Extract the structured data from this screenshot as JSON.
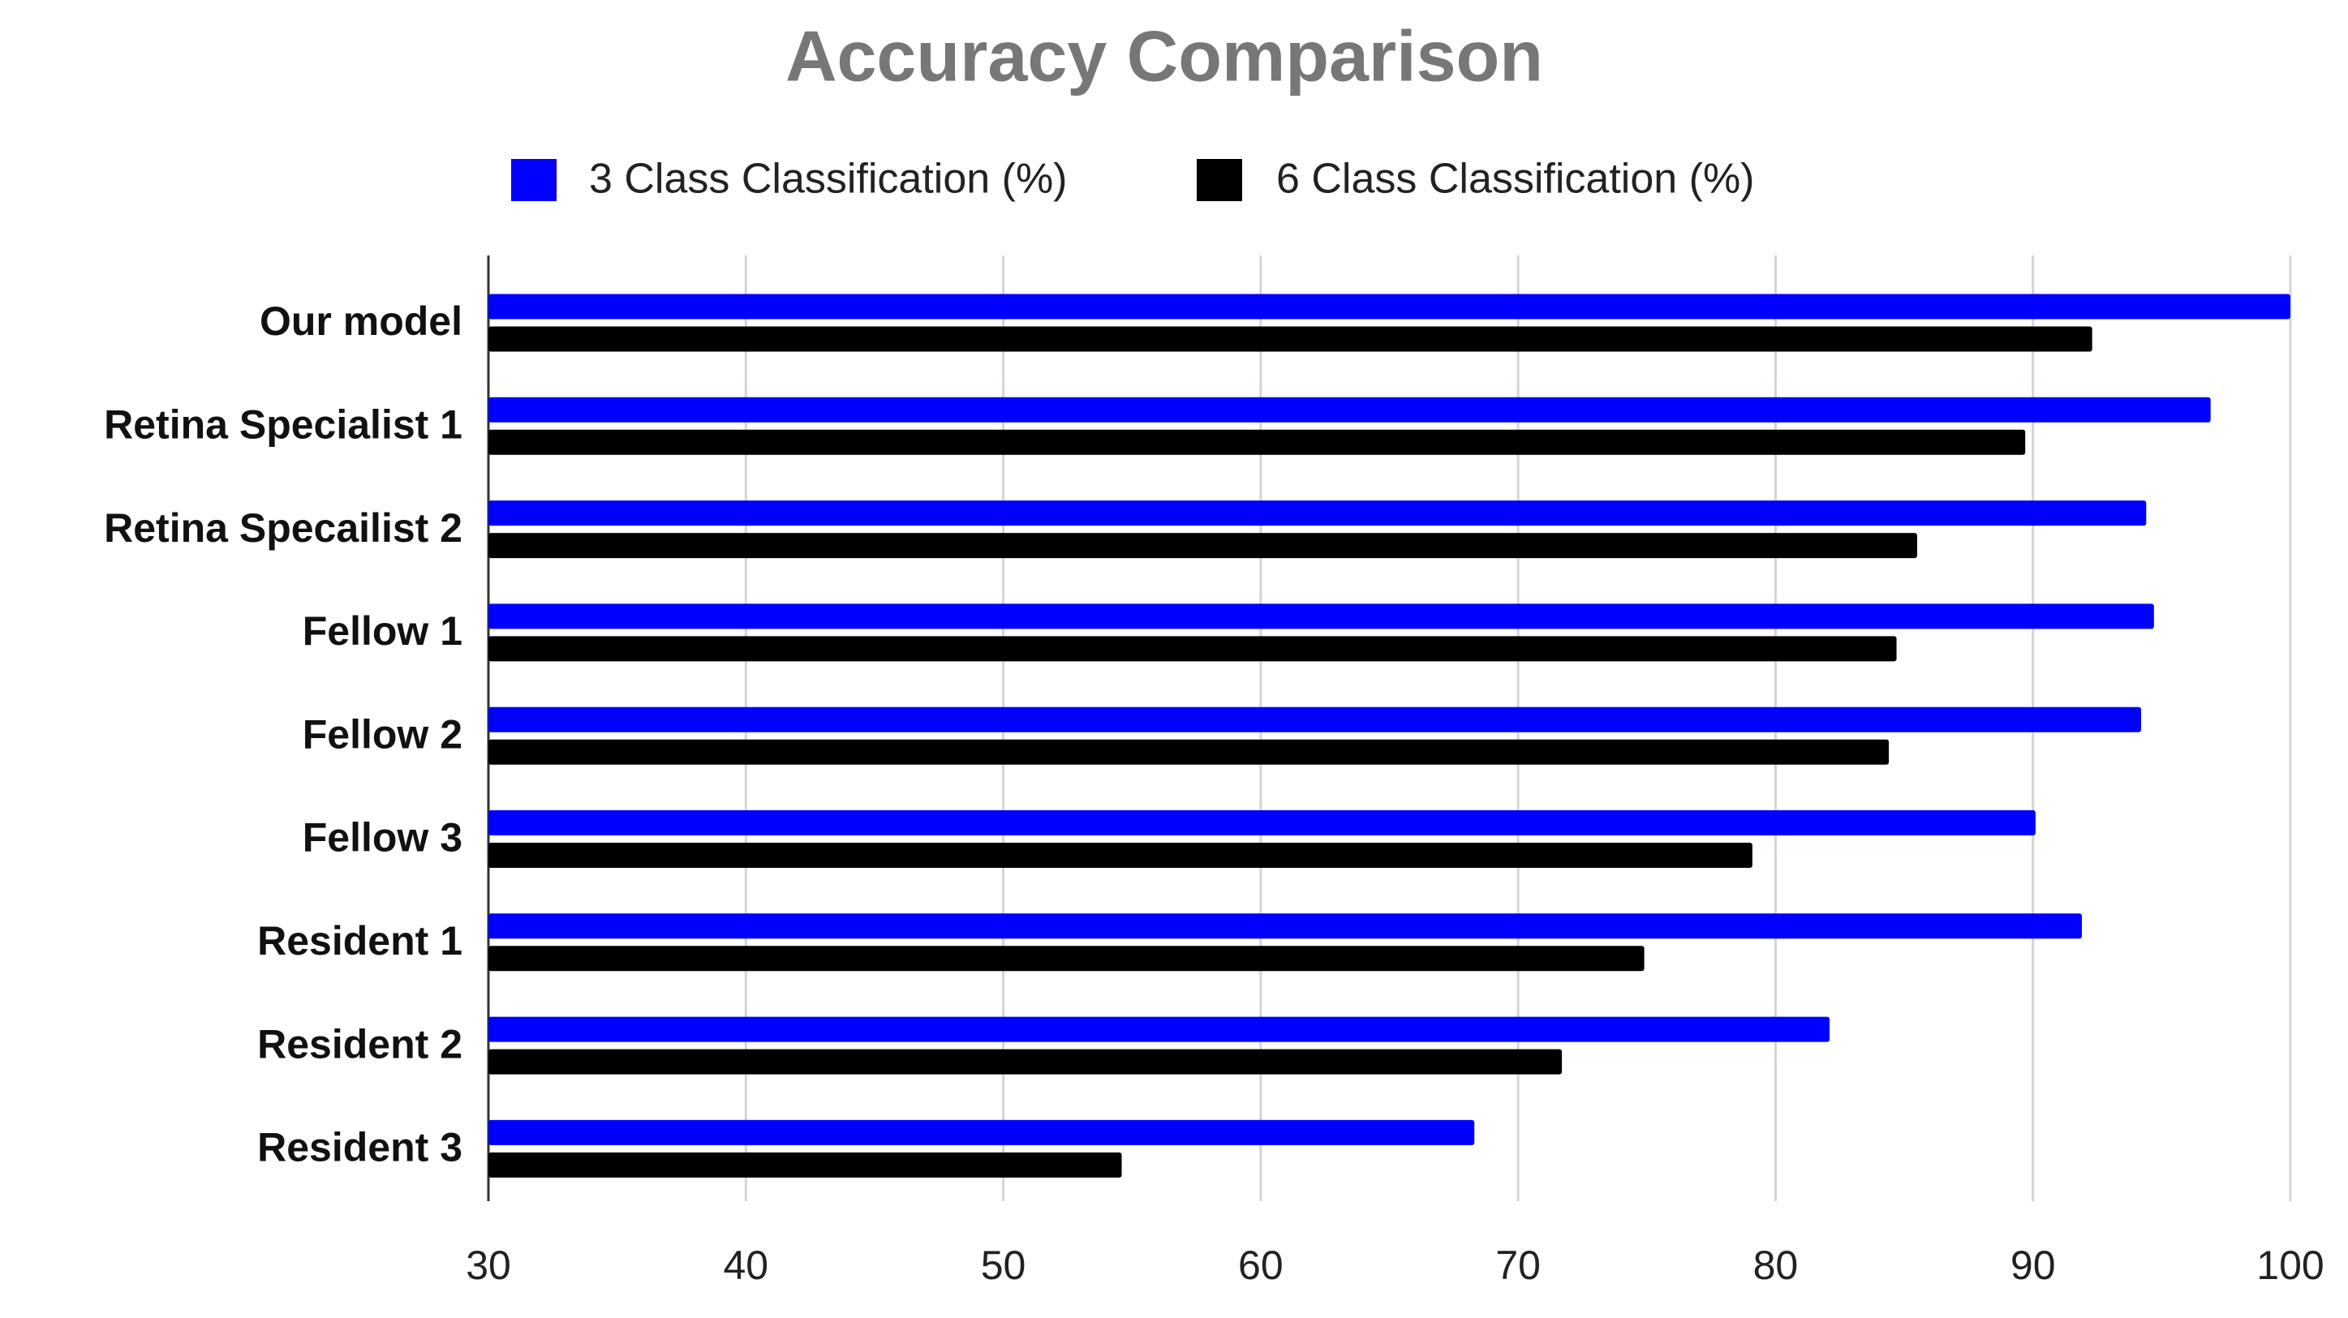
{
  "chart_data": {
    "type": "bar",
    "orientation": "horizontal",
    "title": "Accuracy Comparison",
    "categories": [
      "Our model",
      "Retina Specialist 1",
      "Retina Specailist 2",
      "Fellow 1",
      "Fellow 2",
      "Fellow 3",
      "Resident 1",
      "Resident 2",
      "Resident 3"
    ],
    "series": [
      {
        "name": "3 Class Classification (%)",
        "color": "#0000ff",
        "values": [
          100,
          96.9,
          94.4,
          94.7,
          94.2,
          90.1,
          91.9,
          82.1,
          68.3
        ]
      },
      {
        "name": "6 Class Classification (%)",
        "color": "#000000",
        "values": [
          92.3,
          89.7,
          85.5,
          84.7,
          84.4,
          79.1,
          74.9,
          71.7,
          54.6
        ]
      }
    ],
    "xlim": [
      30,
      100
    ],
    "xticks": [
      30,
      40,
      50,
      60,
      70,
      80,
      90,
      100
    ],
    "grid": true,
    "legend": "top"
  }
}
